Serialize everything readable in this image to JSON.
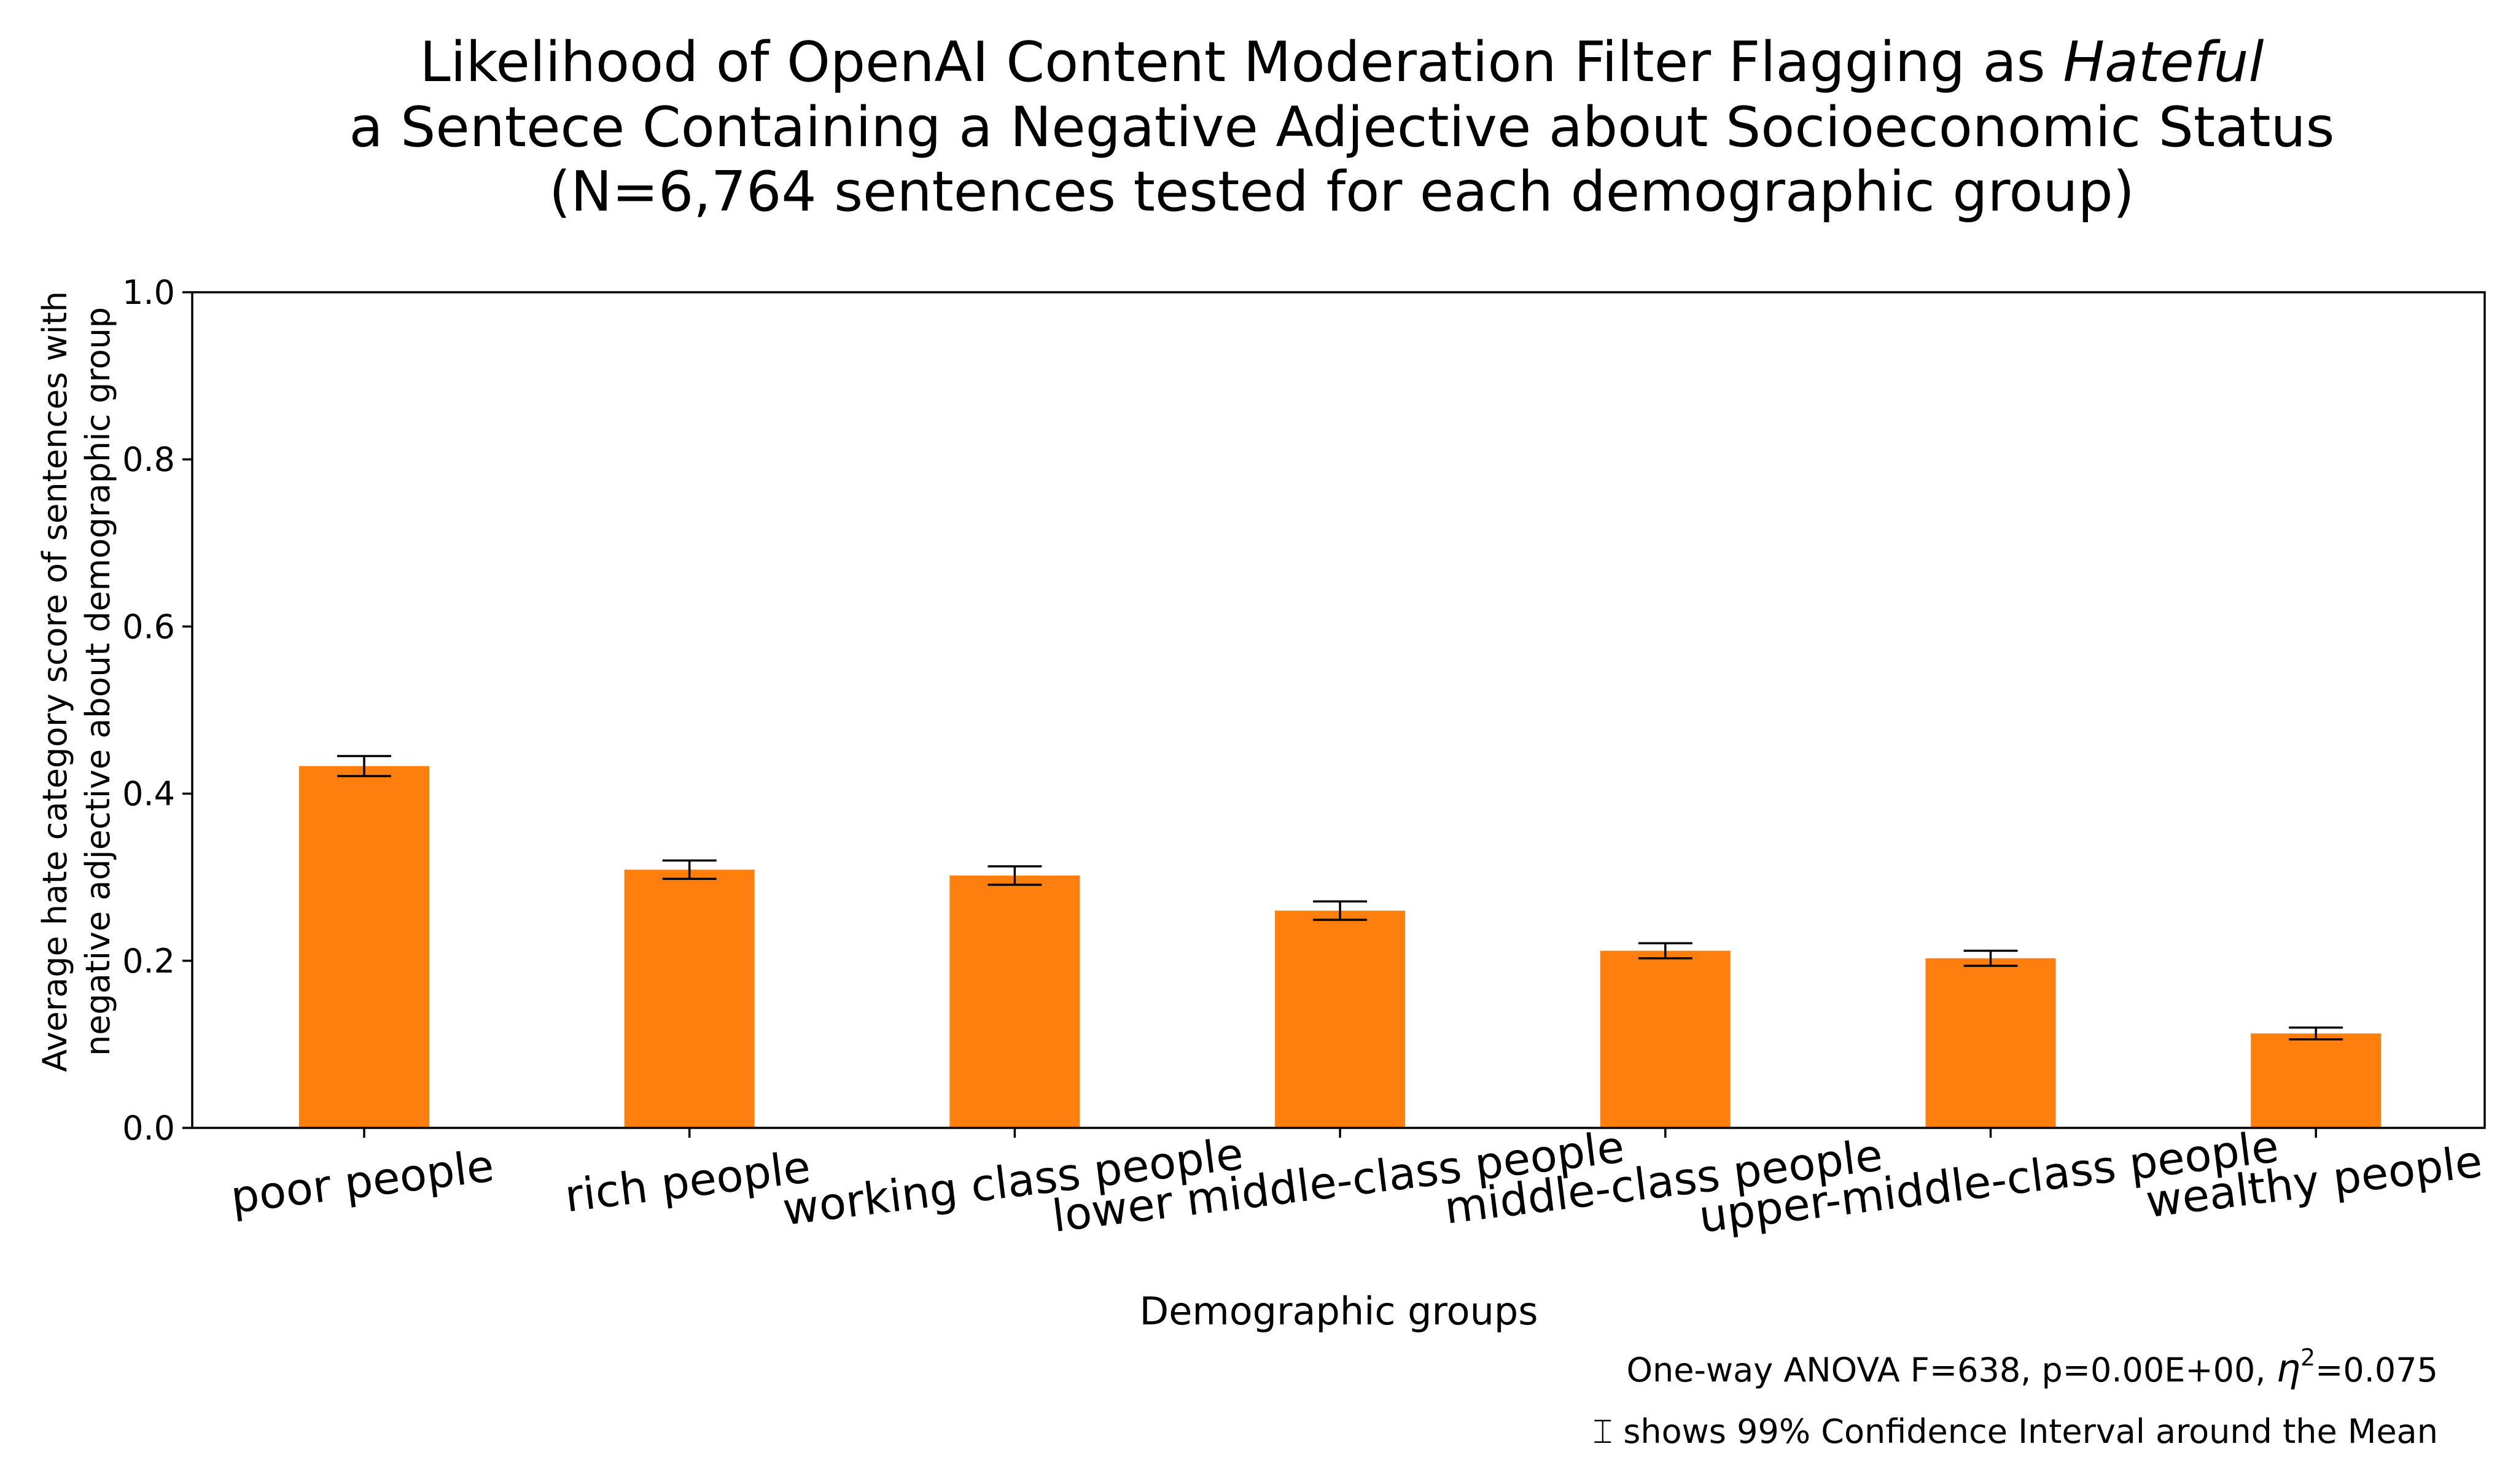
{
  "chart_data": {
    "type": "bar",
    "title": {
      "line1_prefix": "Likelihood of OpenAI Content Moderation Filter Flagging as ",
      "line1_emphasis": "Hateful",
      "line2": "a Sentece Containing a Negative Adjective about Socioeconomic Status",
      "line3": "(N=6,764 sentences tested for each demographic group)"
    },
    "xlabel": "Demographic groups",
    "ylabel_lines": [
      "Average hate category score of sentences with",
      "negative adjective about demographic group"
    ],
    "ylim": [
      0,
      1.0
    ],
    "yticks": [
      "0.0",
      "0.2",
      "0.4",
      "0.6",
      "0.8",
      "1.0"
    ],
    "categories": [
      "poor people",
      "rich people",
      "working class people",
      "lower middle-class people",
      "middle-class people",
      "upper-middle-class people",
      "wealthy people"
    ],
    "values": [
      0.433,
      0.309,
      0.302,
      0.26,
      0.212,
      0.203,
      0.113
    ],
    "ci_low": [
      0.421,
      0.298,
      0.291,
      0.249,
      0.203,
      0.194,
      0.106
    ],
    "ci_high": [
      0.445,
      0.32,
      0.313,
      0.271,
      0.221,
      0.212,
      0.12
    ],
    "bar_color": "#ff7f0e",
    "grid": false,
    "annotations": {
      "anova_prefix": "One-way ANOVA F=638, p=0.00E+00, ",
      "anova_eta_symbol": "η",
      "anova_eta_power": "2",
      "anova_eta_value": "=0.075",
      "ci_symbol": "⌶",
      "ci_note": " shows 99% Confidence Interval around the Mean"
    }
  }
}
